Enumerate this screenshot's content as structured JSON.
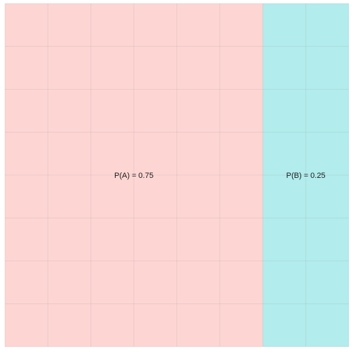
{
  "chart_data": {
    "type": "area",
    "title": "",
    "xlabel": "",
    "ylabel": "",
    "xlim": [
      0,
      1
    ],
    "ylim": [
      0,
      1
    ],
    "grid": true,
    "series": [
      {
        "name": "A",
        "label": "P(A) = 0.75",
        "value": 0.75,
        "color": "#F8766D"
      },
      {
        "name": "B",
        "label": "P(B) = 0.25",
        "value": 0.25,
        "color": "#00BFC4"
      }
    ]
  }
}
